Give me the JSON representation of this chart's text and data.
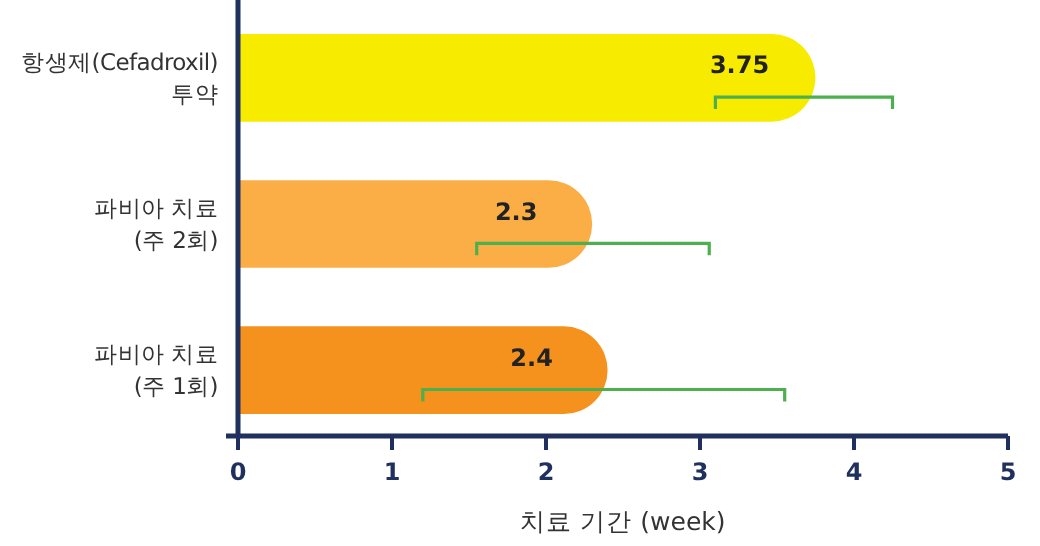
{
  "chart_data": {
    "type": "bar",
    "orientation": "horizontal",
    "categories": [
      "항생제(Cefadroxil)\n투약",
      "파비아 치료\n(주 2회)",
      "파비아 치료\n(주 1회)"
    ],
    "values": [
      3.75,
      2.3,
      2.4
    ],
    "colors": [
      "#f7ec00",
      "#fbae45",
      "#f5921e"
    ],
    "errors": [
      [
        3.1,
        4.25
      ],
      [
        1.55,
        3.06
      ],
      [
        1.2,
        3.55
      ]
    ],
    "xlim": [
      0,
      5
    ],
    "xticks": [
      0,
      1,
      2,
      3,
      4,
      5
    ],
    "xlabel": "치료 기간 (week)",
    "data_labels": true,
    "grid": false
  }
}
